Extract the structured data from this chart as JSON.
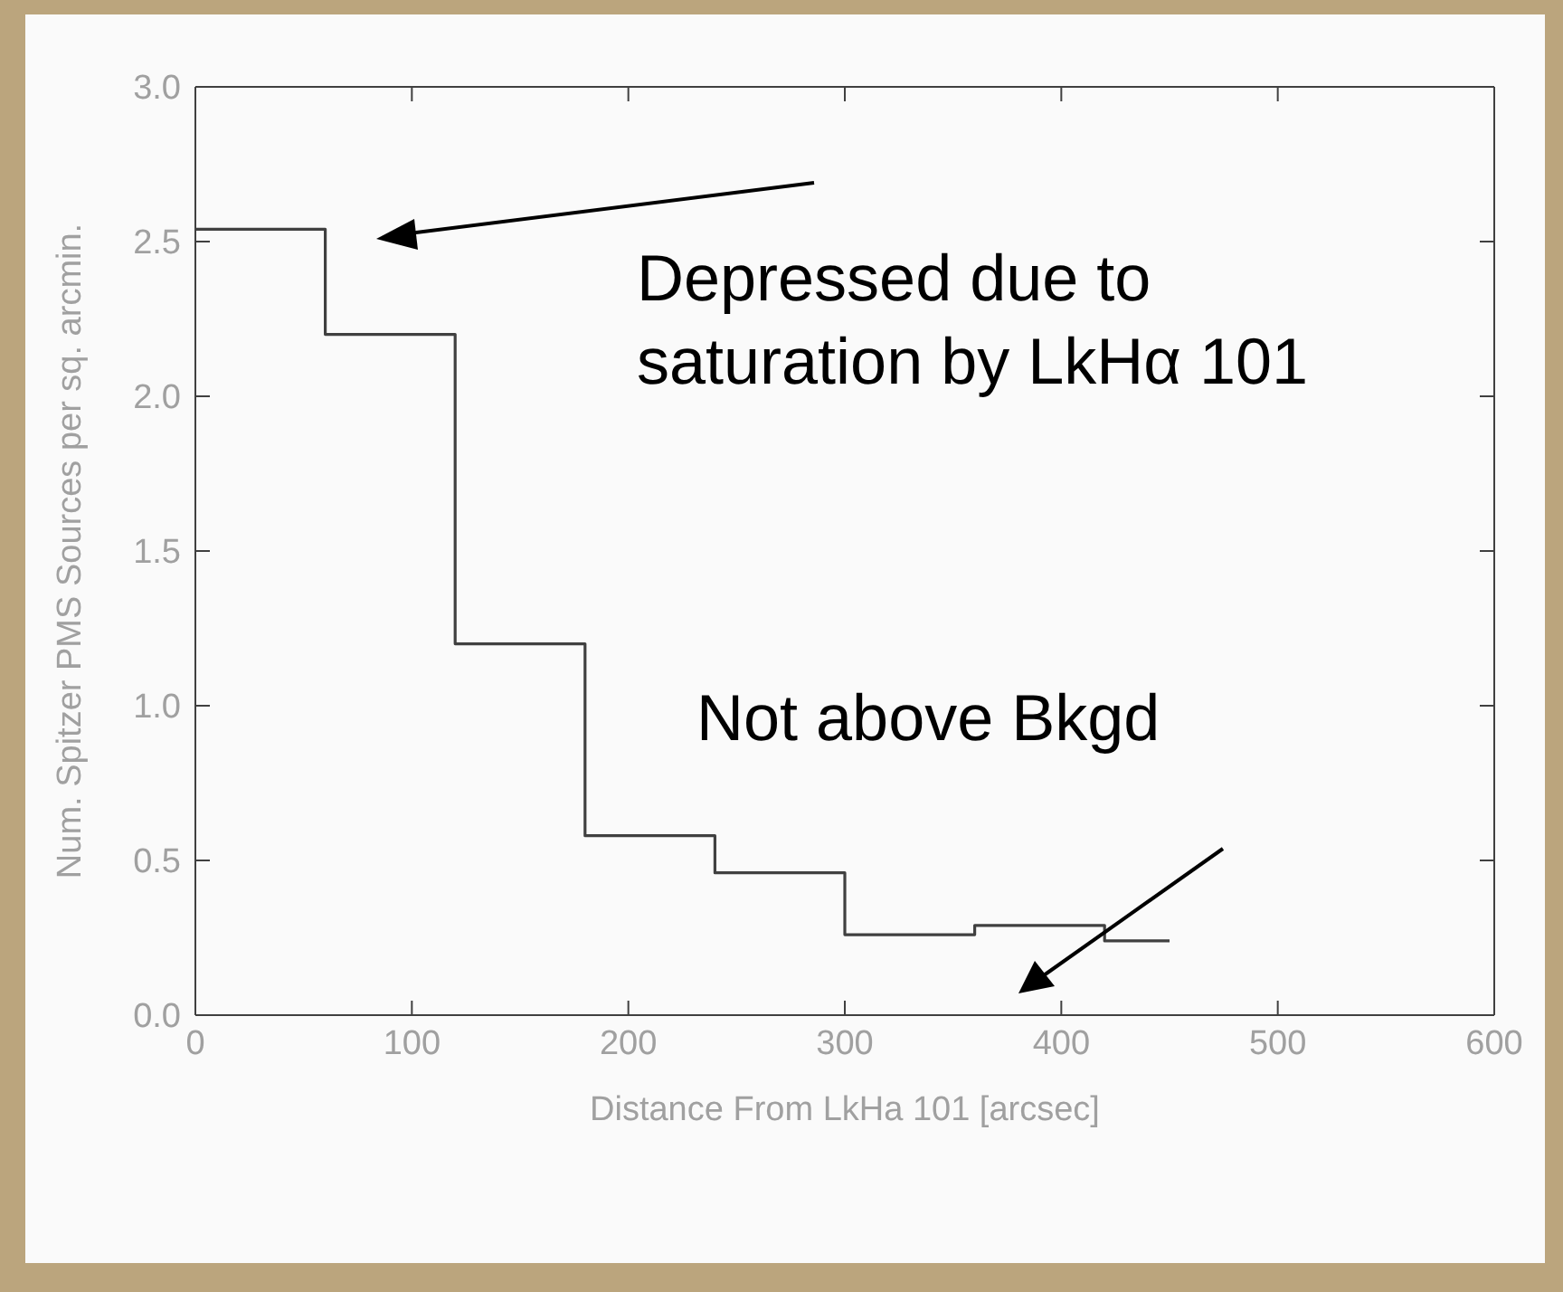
{
  "chart_data": {
    "type": "histogram",
    "xlabel": "Distance From LkHa 101 [arcsec]",
    "ylabel": "Num. Spitzer PMS Sources per sq. arcmin.",
    "bins": [
      0,
      60,
      120,
      180,
      240,
      300,
      360,
      420,
      450
    ],
    "values": [
      2.54,
      2.2,
      1.2,
      0.58,
      0.46,
      0.26,
      0.29,
      0.24
    ],
    "color": "#404040",
    "xlim": [
      0,
      600
    ],
    "xticks": [
      0,
      100,
      200,
      300,
      400,
      500,
      600
    ],
    "ylim": [
      0,
      3
    ],
    "yticks": [
      {
        "value": 0,
        "label": "0.0"
      },
      0.5,
      {
        "value": 1,
        "label": "1.0"
      },
      1.5,
      {
        "value": 2,
        "label": "2.0"
      },
      2.5,
      {
        "value": 3,
        "label": "3.0"
      }
    ],
    "annotations": [
      "Depressed due to\nsaturation by LkHα 101",
      "Not above Bkgd"
    ],
    "grid": false,
    "legend": false,
    "marker": "none",
    "line_style": "solid"
  }
}
